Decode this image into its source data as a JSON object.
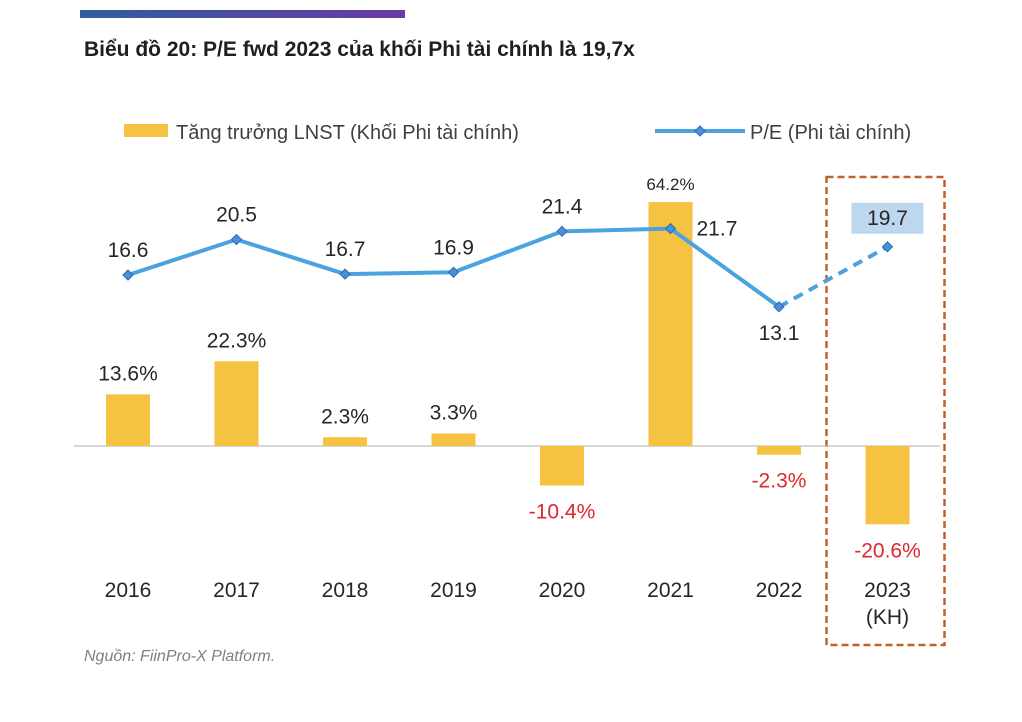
{
  "header": {
    "title": "Biểu đồ 20: P/E fwd 2023 của khối Phi tài chính là 19,7x",
    "source": "Nguồn: FiinPro-X Platform."
  },
  "colors": {
    "bar": "#f5c242",
    "line": "#4aa3df",
    "marker": "#4a8fd8",
    "negative_label": "#e0262e",
    "highlight_box": "#c0622b",
    "highlight_label_bg": "#bdd7ee",
    "topbar_start": "#2f5d9e",
    "topbar_end": "#6a3aa8"
  },
  "chart_data": {
    "type": "bar+line",
    "title": "Biểu đồ 20: P/E fwd 2023 của khối Phi tài chính là 19,7x",
    "categories": [
      "2016",
      "2017",
      "2018",
      "2019",
      "2020",
      "2021",
      "2022",
      "2023\n(KH)"
    ],
    "series": [
      {
        "name": "Tăng trưởng LNST (Khối Phi tài chính)",
        "kind": "bar",
        "values": [
          13.6,
          22.3,
          2.3,
          3.3,
          -10.4,
          64.2,
          -2.3,
          -20.6
        ],
        "labels": [
          "13.6%",
          "22.3%",
          "2.3%",
          "3.3%",
          "-10.4%",
          "64.2%",
          "-2.3%",
          "-20.6%"
        ]
      },
      {
        "name": "P/E (Phi tài chính)",
        "kind": "line",
        "values": [
          16.6,
          20.5,
          16.7,
          16.9,
          21.4,
          21.7,
          13.1,
          19.7
        ],
        "labels": [
          "16.6",
          "20.5",
          "16.7",
          "16.9",
          "21.4",
          "21.7",
          "13.1",
          "19.7"
        ],
        "dashed_last_segment": true
      }
    ],
    "legend_position": "top",
    "highlight_category": "2023\n(KH)"
  }
}
